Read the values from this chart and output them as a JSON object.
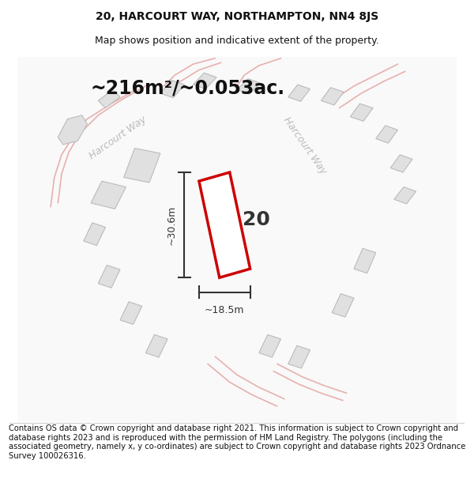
{
  "title": "20, HARCOURT WAY, NORTHAMPTON, NN4 8JS",
  "subtitle": "Map shows position and indicative extent of the property.",
  "area_label": "~216m²/~0.053ac.",
  "number_label": "20",
  "dim_width": "~18.5m",
  "dim_height": "~30.6m",
  "footer": "Contains OS data © Crown copyright and database right 2021. This information is subject to Crown copyright and database rights 2023 and is reproduced with the permission of HM Land Registry. The polygons (including the associated geometry, namely x, y co-ordinates) are subject to Crown copyright and database rights 2023 Ordnance Survey 100026316.",
  "bg_color": "#ffffff",
  "building_fill": "#e0e0e0",
  "building_edge": "#bbbbbb",
  "road_stroke": "#e8b0b0",
  "highlight_color": "#cc0000",
  "dim_color": "#333333",
  "road_label_color": "#bbbbbb",
  "title_color": "#111111",
  "footer_color": "#111111",
  "title_fontsize": 10,
  "subtitle_fontsize": 9,
  "footer_fontsize": 7.2,
  "area_fontsize": 17,
  "number_fontsize": 18,
  "dim_fontsize": 9,
  "road_label_fontsize": 9
}
